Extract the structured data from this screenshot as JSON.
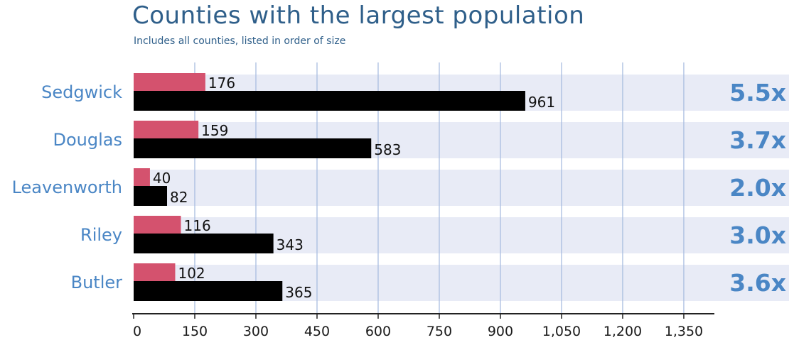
{
  "chart_data": {
    "type": "bar",
    "title": "Counties with the largest population",
    "subtitle": "Includes all counties, listed in order of size",
    "categories": [
      "Sedgwick",
      "Douglas",
      "Leavenworth",
      "Riley",
      "Butler"
    ],
    "series": [
      {
        "values": [
          176,
          159,
          40,
          116,
          102
        ],
        "color": "#d4526e"
      },
      {
        "values": [
          961,
          583,
          82,
          343,
          365
        ],
        "color": "#000000"
      }
    ],
    "ratios": [
      "5.5x",
      "3.7x",
      "2.0x",
      "3.0x",
      "3.6x"
    ],
    "xlim": [
      0,
      1450
    ],
    "xticks": [
      0,
      150,
      300,
      450,
      600,
      750,
      900,
      1050,
      1200,
      1350
    ],
    "xtick_labels": [
      "0",
      "150",
      "300",
      "450",
      "600",
      "750",
      "900",
      "1,050",
      "1,200",
      "1,350"
    ],
    "orientation": "horizontal",
    "grid": true,
    "colors": {
      "title": "#2f5f8a",
      "category_label": "#4a86c5",
      "ratio": "#4a86c5",
      "band": "#e8ebf6",
      "gridline": "#a9bde0",
      "axis": "#222222"
    }
  }
}
